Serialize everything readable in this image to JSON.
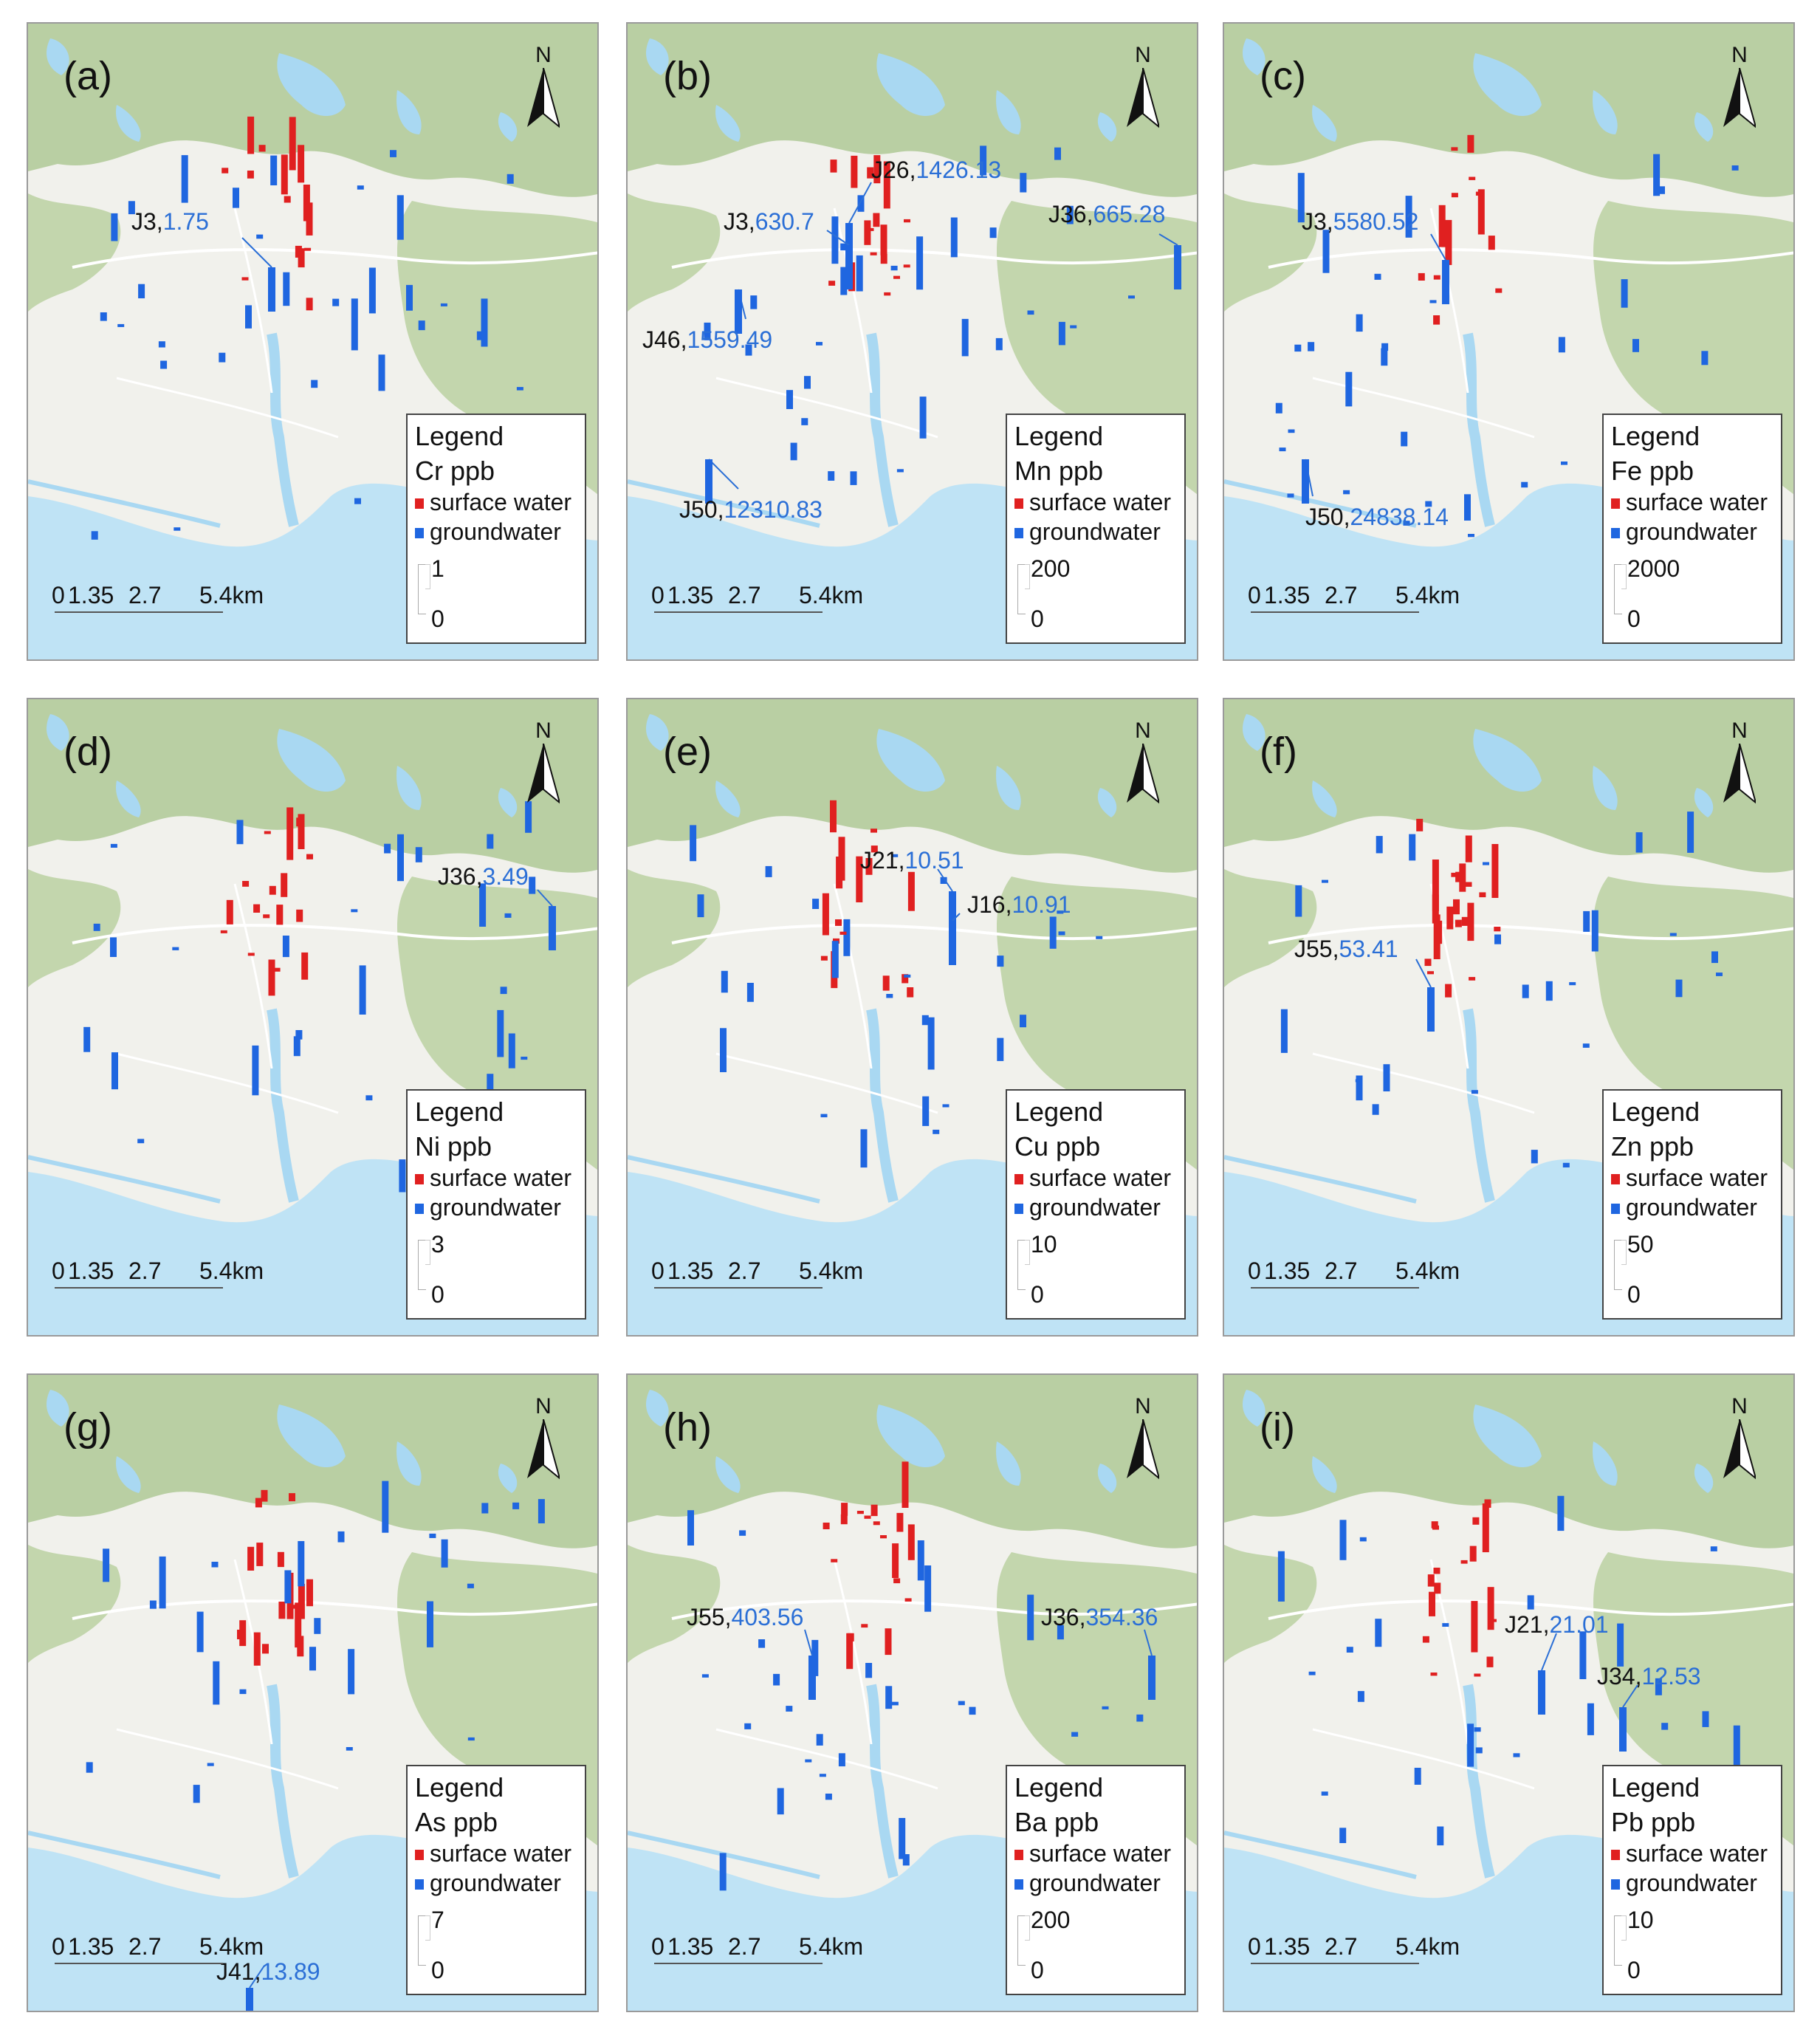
{
  "figure": {
    "legend_title": "Legend",
    "surface_label": "surface water",
    "ground_label": "groundwater",
    "scale_bar": {
      "ticks": [
        "0",
        "1.35",
        "2.7",
        "5.4"
      ],
      "unit": "km"
    },
    "north_label": "N",
    "colors": {
      "surface": "#e02020",
      "ground": "#1f66e0",
      "sea": "#bfe3f5",
      "lakes": "#a9d8f2",
      "hills": "#b9cfa3",
      "plain": "#f1f1ec",
      "callout_value": "#2b6fd6"
    }
  },
  "panels": [
    {
      "label": "(a)",
      "element": "Cr ppb",
      "scale_max": "1",
      "scale_min": "0",
      "callouts": [
        {
          "site": "J3,",
          "value": "1.75"
        }
      ]
    },
    {
      "label": "(b)",
      "element": "Mn ppb",
      "scale_max": "200",
      "scale_min": "0",
      "callouts": [
        {
          "site": "J26,",
          "value": "1426.13"
        },
        {
          "site": "J3,",
          "value": "630.7"
        },
        {
          "site": "J36,",
          "value": "665.28"
        },
        {
          "site": "J46,",
          "value": "1559.49"
        },
        {
          "site": "J50,",
          "value": "12310.83"
        }
      ]
    },
    {
      "label": "(c)",
      "element": "Fe ppb",
      "scale_max": "2000",
      "scale_min": "0",
      "callouts": [
        {
          "site": "J3,",
          "value": "5580.52"
        },
        {
          "site": "J50,",
          "value": "24838.14"
        }
      ]
    },
    {
      "label": "(d)",
      "element": "Ni ppb",
      "scale_max": "3",
      "scale_min": "0",
      "callouts": [
        {
          "site": "J36,",
          "value": "3.49"
        }
      ]
    },
    {
      "label": "(e)",
      "element": "Cu ppb",
      "scale_max": "10",
      "scale_min": "0",
      "callouts": [
        {
          "site": "J21,",
          "value": "10.51"
        },
        {
          "site": "J16,",
          "value": "10.91"
        }
      ]
    },
    {
      "label": "(f)",
      "element": "Zn ppb",
      "scale_max": "50",
      "scale_min": "0",
      "callouts": [
        {
          "site": "J55,",
          "value": "53.41"
        }
      ]
    },
    {
      "label": "(g)",
      "element": "As ppb",
      "scale_max": "7",
      "scale_min": "0",
      "callouts": [
        {
          "site": "J41,",
          "value": "13.89"
        }
      ]
    },
    {
      "label": "(h)",
      "element": "Ba ppb",
      "scale_max": "200",
      "scale_min": "0",
      "callouts": [
        {
          "site": "J55,",
          "value": "403.56"
        },
        {
          "site": "J36,",
          "value": "354.36"
        }
      ]
    },
    {
      "label": "(i)",
      "element": "Pb ppb",
      "scale_max": "10",
      "scale_min": "0",
      "callouts": [
        {
          "site": "J21,",
          "value": "21.01"
        },
        {
          "site": "J34,",
          "value": "12.53"
        }
      ]
    }
  ]
}
